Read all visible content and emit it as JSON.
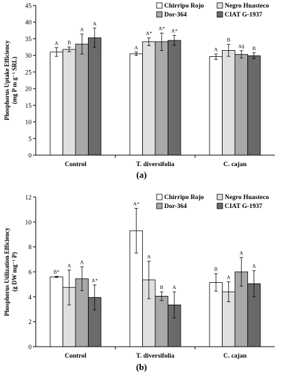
{
  "chart_data": [
    {
      "type": "bar",
      "panel_label": "(a)",
      "ylabel_line1": "Phosphorus Uptake Efficiency",
      "ylabel_line2": "(mg P m g⁻¹ SRL)",
      "ylim": [
        0,
        45
      ],
      "yticks": [
        0,
        5,
        10,
        15,
        20,
        25,
        30,
        35,
        40,
        45
      ],
      "categories": [
        "Control",
        "T. diversifolia",
        "C. cajan"
      ],
      "legend_position": "top-right",
      "series": [
        {
          "name": "Chirripo Rojo",
          "color": "#ffffff",
          "values": [
            31.0,
            30.5,
            29.6
          ],
          "errors": [
            1.3,
            0.5,
            0.8
          ],
          "labels": [
            "A",
            "A",
            "A"
          ]
        },
        {
          "name": "Negro Huasteco",
          "color": "#e0e0e0",
          "values": [
            31.8,
            34.1,
            31.5
          ],
          "errors": [
            0.7,
            1.2,
            1.8
          ],
          "labels": [
            "B",
            "A*",
            "B"
          ]
        },
        {
          "name": "Dor-364",
          "color": "#a8a8a8",
          "values": [
            33.4,
            34.1,
            30.3
          ],
          "errors": [
            3.0,
            2.6,
            1.1
          ],
          "labels": [
            "A",
            "A*",
            "A§"
          ]
        },
        {
          "name": "CIAT G-1937",
          "color": "#6a6a6a",
          "values": [
            35.3,
            34.5,
            29.9
          ],
          "errors": [
            2.9,
            1.5,
            0.9
          ],
          "labels": [
            "A",
            "A*",
            "B"
          ]
        }
      ]
    },
    {
      "type": "bar",
      "panel_label": "(b)",
      "ylabel_line1": "Phosphorus Utilization Efficiency",
      "ylabel_line2": "(g DW mg⁻¹ P)",
      "ylim": [
        0,
        12
      ],
      "yticks": [
        0,
        2,
        4,
        6,
        8,
        10,
        12
      ],
      "categories": [
        "Control",
        "T. diversifolia",
        "C. cajan"
      ],
      "legend_position": "top-right",
      "series": [
        {
          "name": "Chirripo Rojo",
          "color": "#ffffff",
          "values": [
            5.6,
            9.3,
            5.15
          ],
          "errors": [
            0.05,
            1.8,
            0.7
          ],
          "labels": [
            "B*",
            "A*",
            "B"
          ]
        },
        {
          "name": "Negro Huasteco",
          "color": "#e0e0e0",
          "values": [
            4.75,
            5.35,
            4.4
          ],
          "errors": [
            1.4,
            1.5,
            0.8
          ],
          "labels": [
            "A",
            "A",
            "A"
          ]
        },
        {
          "name": "Dor-364",
          "color": "#a8a8a8",
          "values": [
            5.45,
            4.05,
            6.0
          ],
          "errors": [
            0.95,
            0.35,
            1.15
          ],
          "labels": [
            "A",
            "B",
            "A"
          ]
        },
        {
          "name": "CIAT G-1937",
          "color": "#6a6a6a",
          "values": [
            3.95,
            3.35,
            5.05
          ],
          "errors": [
            1.0,
            1.05,
            1.05
          ],
          "labels": [
            "A*",
            "A",
            "A"
          ]
        }
      ]
    }
  ]
}
